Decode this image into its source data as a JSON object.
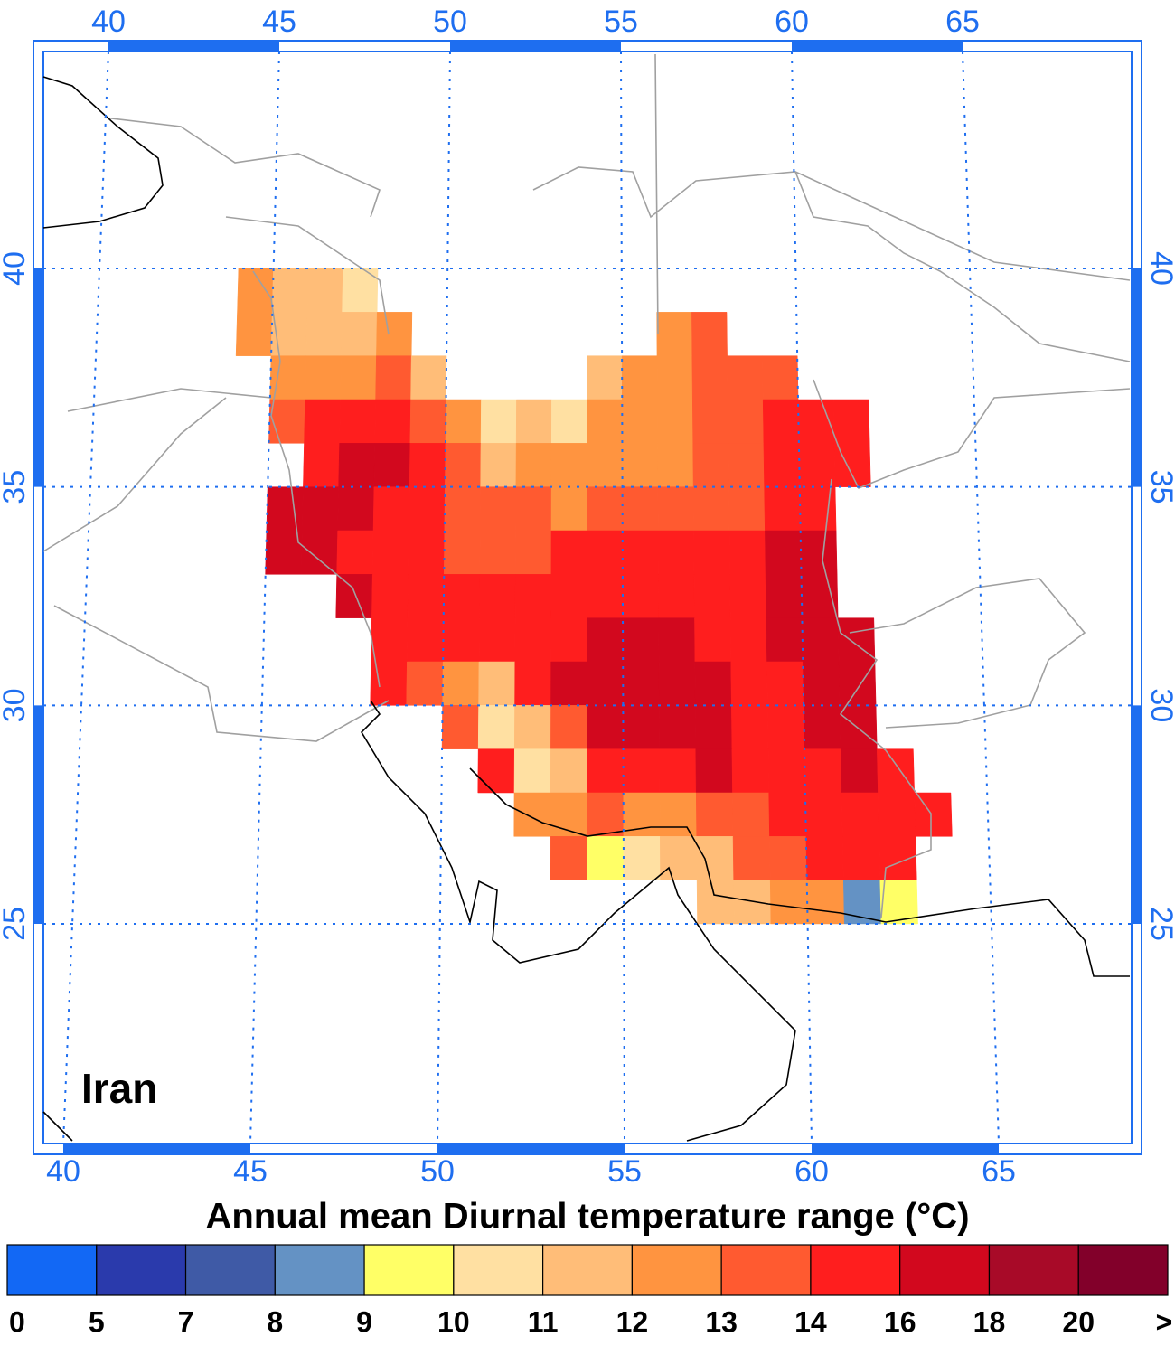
{
  "map": {
    "title": "Annual mean Diurnal temperature range (°C)",
    "region_label": "Iran",
    "lon_ticks": [
      40,
      45,
      50,
      55,
      60,
      65
    ],
    "lat_ticks": [
      40,
      35,
      30,
      25
    ],
    "grid": true,
    "tick_color": "#1e6ef0",
    "cells": {
      "lon_start": 44,
      "rows": [
        {
          "lat": 39,
          "values": [
            12.5,
            11.5,
            11.5,
            10.5,
            null,
            null,
            null,
            null,
            null,
            null,
            null,
            null,
            null,
            null,
            null,
            null,
            null,
            null,
            null,
            null
          ]
        },
        {
          "lat": 38,
          "values": [
            12.5,
            11.5,
            11.5,
            11.5,
            12.5,
            null,
            null,
            null,
            null,
            null,
            null,
            null,
            12.5,
            13.5,
            null,
            null,
            null,
            null,
            null,
            null
          ]
        },
        {
          "lat": 37,
          "values": [
            null,
            12.5,
            12.5,
            12.5,
            13.5,
            11.5,
            null,
            null,
            null,
            null,
            11.5,
            12.5,
            12.5,
            13.5,
            13.5,
            13.5,
            null,
            null,
            null,
            null
          ]
        },
        {
          "lat": 36,
          "values": [
            null,
            13.5,
            15,
            15,
            15,
            13.5,
            12.5,
            10.5,
            11.5,
            10.5,
            12.5,
            12.5,
            12.5,
            13.5,
            13.5,
            15,
            15,
            15,
            null,
            null
          ]
        },
        {
          "lat": 35,
          "values": [
            null,
            null,
            15,
            17,
            17,
            15,
            13.5,
            11.5,
            12.5,
            12.5,
            12.5,
            12.5,
            12.5,
            13.5,
            13.5,
            15,
            15,
            15,
            null,
            null
          ]
        },
        {
          "lat": 34,
          "values": [
            null,
            17,
            17,
            17,
            15,
            15,
            13.5,
            13.5,
            13.5,
            12.5,
            13.5,
            13.5,
            13.5,
            13.5,
            13.5,
            15,
            15,
            null,
            null,
            null
          ]
        },
        {
          "lat": 33,
          "values": [
            null,
            17,
            17,
            15,
            15,
            15,
            13.5,
            13.5,
            13.5,
            15,
            15,
            15,
            15,
            15,
            15,
            17,
            17,
            null,
            null,
            null
          ]
        },
        {
          "lat": 32,
          "values": [
            null,
            null,
            null,
            17,
            15,
            15,
            15,
            15,
            15,
            15,
            15,
            15,
            15,
            15,
            15,
            17,
            17,
            null,
            null,
            null
          ]
        },
        {
          "lat": 31,
          "values": [
            null,
            null,
            null,
            null,
            15,
            15,
            15,
            15,
            15,
            15,
            17,
            17,
            17,
            15,
            15,
            17,
            17,
            17,
            null,
            null
          ]
        },
        {
          "lat": 30,
          "values": [
            null,
            null,
            null,
            null,
            15,
            13.5,
            12.5,
            11.5,
            15,
            17,
            17,
            17,
            17,
            17,
            15,
            15,
            17,
            17,
            null,
            null
          ]
        },
        {
          "lat": 29,
          "values": [
            null,
            null,
            null,
            null,
            null,
            null,
            13.5,
            10.5,
            11.5,
            13.5,
            17,
            17,
            17,
            17,
            15,
            15,
            17,
            17,
            null,
            null
          ]
        },
        {
          "lat": 28,
          "values": [
            null,
            null,
            null,
            null,
            null,
            null,
            null,
            15,
            10.5,
            11.5,
            15,
            15,
            15,
            17,
            15,
            15,
            15,
            17,
            15,
            null
          ]
        },
        {
          "lat": 27,
          "values": [
            null,
            null,
            null,
            null,
            null,
            null,
            null,
            null,
            12.5,
            12.5,
            13.5,
            12.5,
            12.5,
            13.5,
            13.5,
            15,
            15,
            15,
            15,
            15
          ]
        },
        {
          "lat": 26,
          "values": [
            null,
            null,
            null,
            null,
            null,
            null,
            null,
            null,
            null,
            13.5,
            9.5,
            10.5,
            11.5,
            11.5,
            13.5,
            13.5,
            15,
            15,
            15,
            null
          ]
        },
        {
          "lat": 25,
          "values": [
            null,
            null,
            null,
            null,
            null,
            null,
            null,
            null,
            null,
            null,
            null,
            null,
            null,
            11.5,
            11.5,
            12.5,
            12.5,
            8.5,
            9.5,
            null
          ]
        }
      ]
    },
    "colorbar": {
      "levels": [
        0,
        5,
        7,
        8,
        9,
        10,
        11,
        12,
        13,
        14,
        16,
        18,
        20
      ],
      "overflow_label": ">",
      "colors": [
        "#1268f5",
        "#2a3aac",
        "#3f5aa6",
        "#6492c4",
        "#ffff66",
        "#ffe0a2",
        "#ffbd78",
        "#ff9440",
        "#ff5a30",
        "#ff1e1e",
        "#d2081e",
        "#a80a28",
        "#82002a"
      ]
    }
  }
}
